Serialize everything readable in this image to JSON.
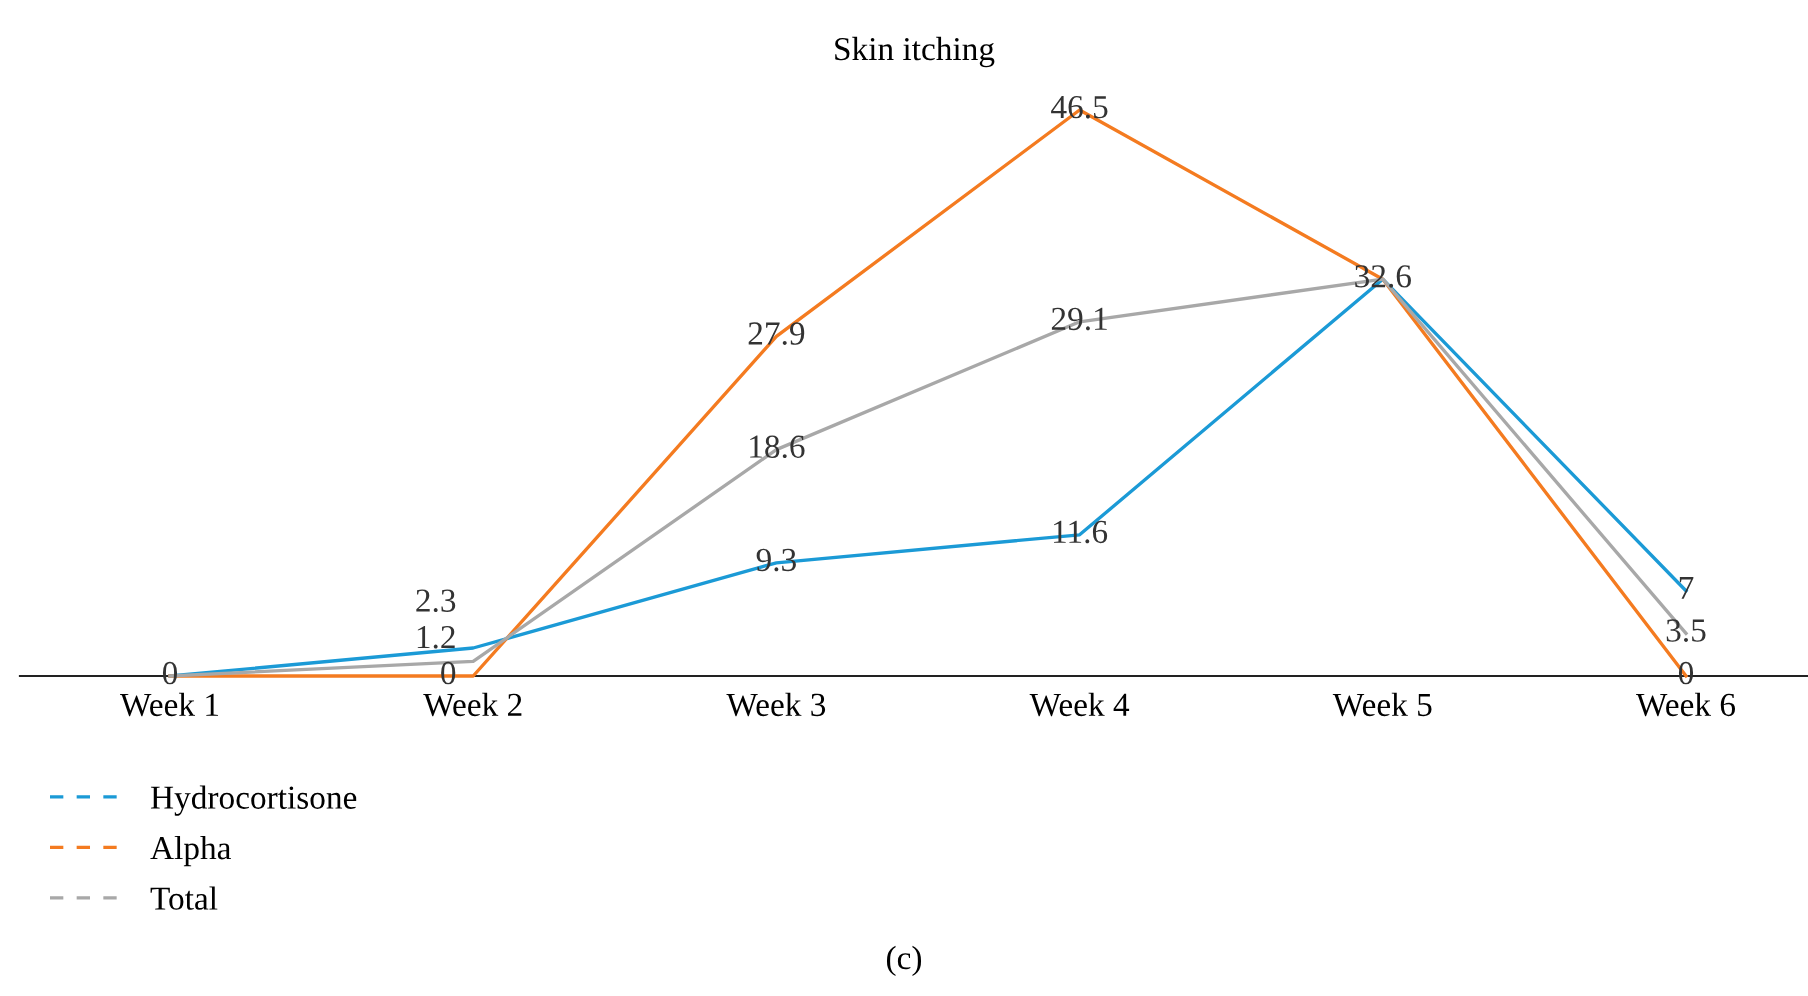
{
  "chart_data": {
    "type": "line",
    "title": "Skin itching",
    "categories": [
      "Week 1",
      "Week 2",
      "Week 3",
      "Week 4",
      "Week 5",
      "Week 6"
    ],
    "series": [
      {
        "name": "Hydrocortisone",
        "color": "#1b9ad6",
        "values": [
          0,
          2.3,
          9.3,
          11.6,
          32.6,
          7
        ],
        "value_labels": [
          "0",
          "2.3",
          "9.3",
          "11.6",
          "32.6",
          "7"
        ]
      },
      {
        "name": "Alpha",
        "color": "#f47b20",
        "values": [
          0,
          0,
          27.9,
          46.5,
          32.6,
          0
        ],
        "value_labels": [
          null,
          "0",
          "27.9",
          "46.5",
          null,
          "0"
        ]
      },
      {
        "name": "Total",
        "color": "#a8a8a8",
        "values": [
          0,
          1.2,
          18.6,
          29.1,
          32.6,
          3.5
        ],
        "value_labels": [
          null,
          "1.2",
          "18.6",
          "29.1",
          null,
          "3.5"
        ]
      }
    ],
    "legend": "bottom left",
    "grid": false,
    "marker": "none",
    "line_style": "solid",
    "annotations": [
      "(c)"
    ]
  }
}
